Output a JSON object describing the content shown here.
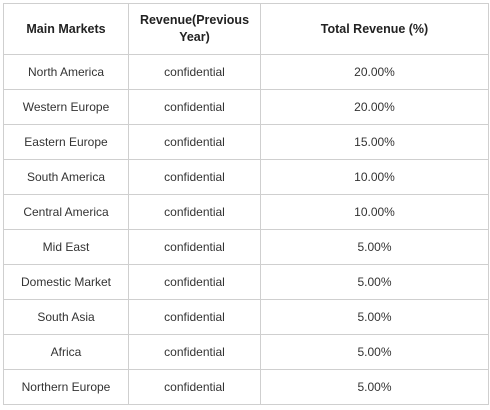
{
  "table": {
    "headers": [
      "Main Markets",
      "Revenue(Previous Year)",
      "Total Revenue (%)"
    ],
    "rows": [
      [
        "North America",
        "confidential",
        "20.00%"
      ],
      [
        "Western Europe",
        "confidential",
        "20.00%"
      ],
      [
        "Eastern Europe",
        "confidential",
        "15.00%"
      ],
      [
        "South America",
        "confidential",
        "10.00%"
      ],
      [
        "Central America",
        "confidential",
        "10.00%"
      ],
      [
        "Mid East",
        "confidential",
        "5.00%"
      ],
      [
        "Domestic Market",
        "confidential",
        "5.00%"
      ],
      [
        "South Asia",
        "confidential",
        "5.00%"
      ],
      [
        "Africa",
        "confidential",
        "5.00%"
      ],
      [
        "Northern Europe",
        "confidential",
        "5.00%"
      ]
    ]
  }
}
